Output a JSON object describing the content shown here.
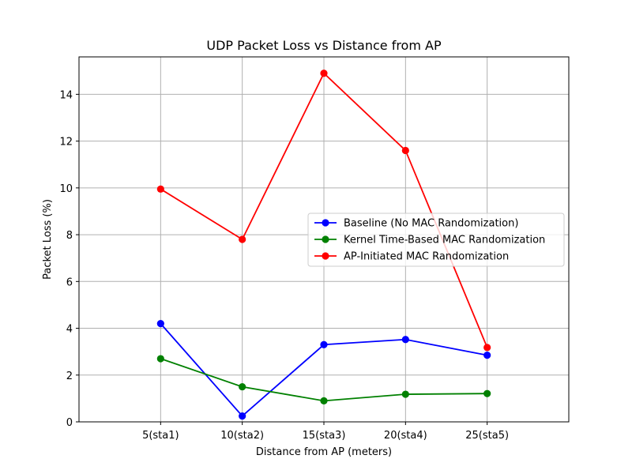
{
  "chart_data": {
    "type": "line",
    "title": "UDP Packet Loss vs Distance from AP",
    "xlabel": "Distance from AP (meters)",
    "ylabel": "Packet Loss (%)",
    "categories": [
      "5(sta1)",
      "10(sta2)",
      "15(sta3)",
      "20(sta4)",
      "25(sta5)"
    ],
    "ylim": [
      0,
      15.6
    ],
    "yticks": [
      0,
      2,
      4,
      6,
      8,
      10,
      12,
      14
    ],
    "grid": true,
    "legend_position": "center-right",
    "series": [
      {
        "name": "Baseline (No MAC Randomization)",
        "color": "#0000ff",
        "values": [
          4.2,
          0.25,
          3.3,
          3.52,
          2.85
        ]
      },
      {
        "name": "Kernel Time-Based MAC Randomization",
        "color": "#008000",
        "values": [
          2.7,
          1.5,
          0.9,
          1.18,
          1.21
        ]
      },
      {
        "name": "AP-Initiated MAC Randomization",
        "color": "#ff0000",
        "values": [
          9.95,
          7.8,
          14.9,
          11.6,
          3.18
        ]
      }
    ]
  }
}
